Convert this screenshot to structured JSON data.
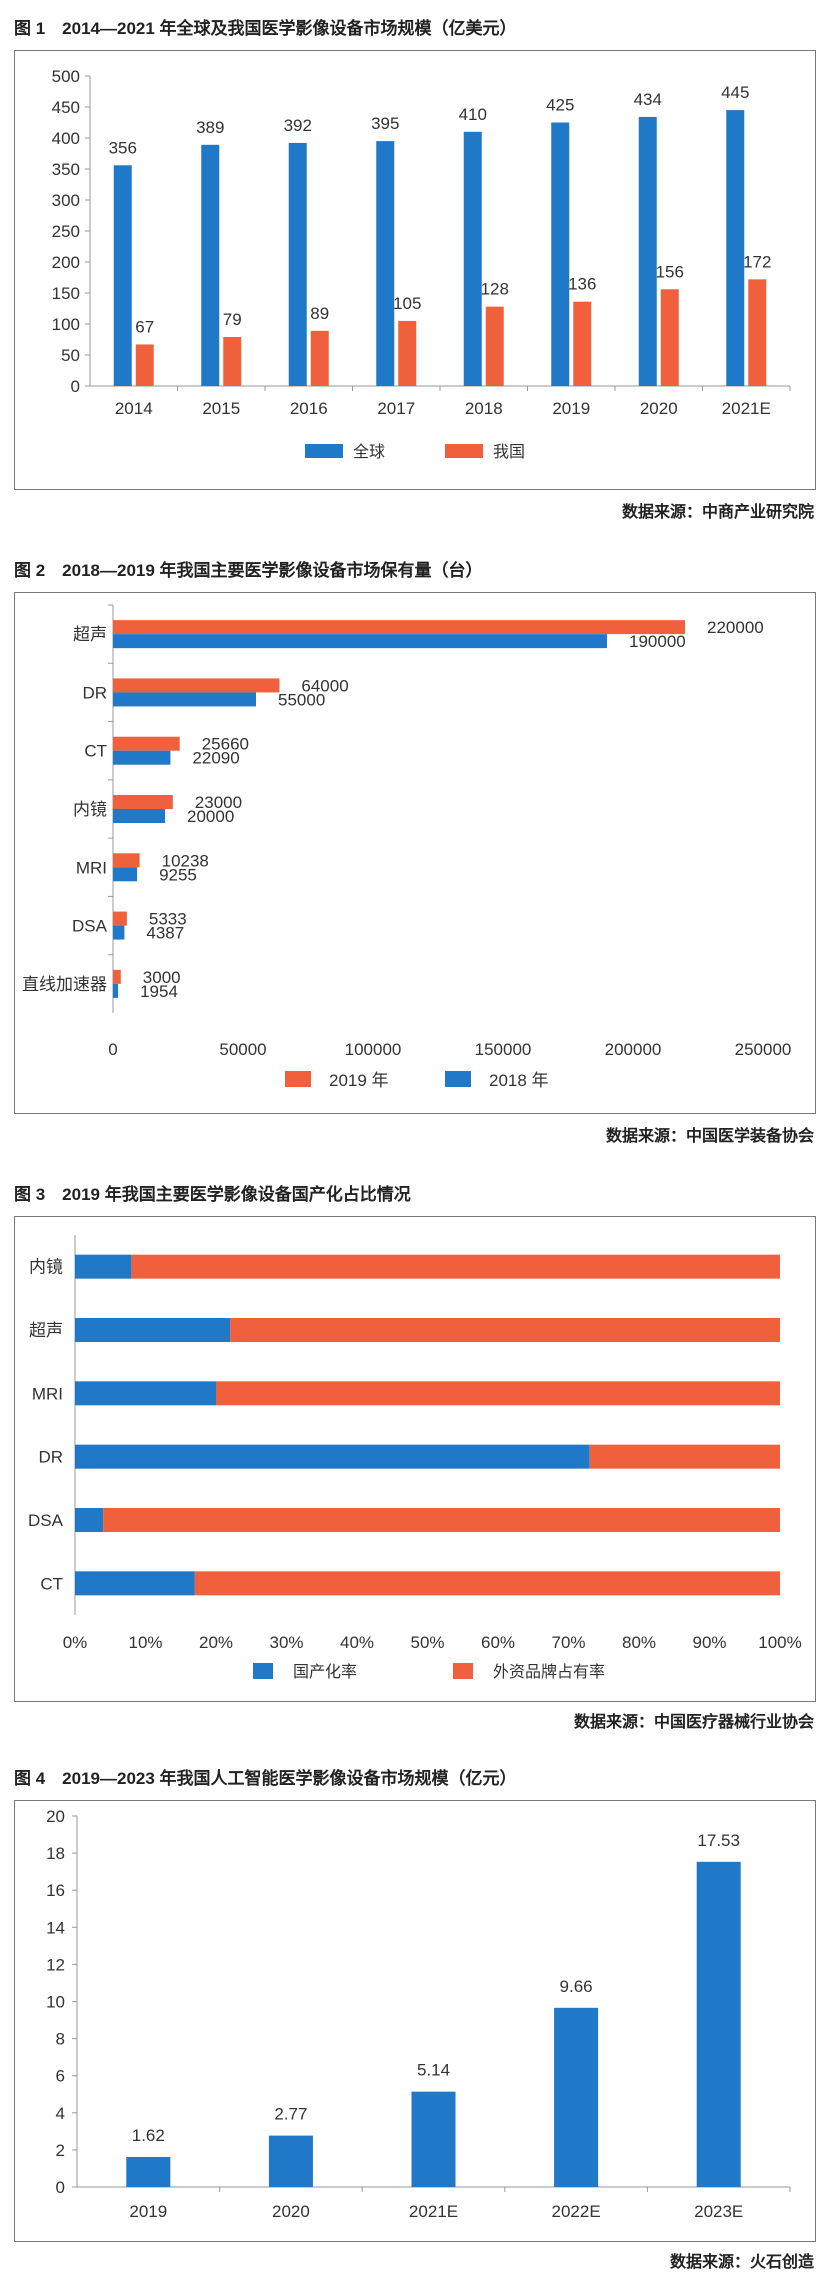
{
  "colors": {
    "blue": "#1f78c8",
    "orange": "#f0603c",
    "axis": "#9a9a9a"
  },
  "figures": [
    {
      "caption": "图 1　2014—2021 年全球及我国医学影像设备市场规模（亿美元）",
      "source": "数据来源：中商产业研究院"
    },
    {
      "caption": "图 2　2018—2019 年我国主要医学影像设备市场保有量（台）",
      "source": "数据来源：中国医学装备协会"
    },
    {
      "caption": "图 3　2019 年我国主要医学影像设备国产化占比情况",
      "source": "数据来源：中国医疗器械行业协会"
    },
    {
      "caption": "图 4　2019—2023 年我国人工智能医学影像设备市场规模（亿元）",
      "source": "数据来源：火石创造"
    }
  ],
  "chart_data": [
    {
      "type": "bar",
      "categories": [
        "2014",
        "2015",
        "2016",
        "2017",
        "2018",
        "2019",
        "2020",
        "2021E"
      ],
      "series": [
        {
          "name": "全球",
          "values": [
            356,
            389,
            392,
            395,
            410,
            425,
            434,
            445
          ],
          "color": "#1f78c8"
        },
        {
          "name": "我国",
          "values": [
            67,
            79,
            89,
            105,
            128,
            136,
            156,
            172
          ],
          "color": "#f0603c"
        }
      ],
      "ylim": [
        0,
        500
      ],
      "yticks": [
        0,
        50,
        100,
        150,
        200,
        250,
        300,
        350,
        400,
        450,
        500
      ],
      "legend": "bottom-center",
      "grid": false
    },
    {
      "type": "bar",
      "orientation": "horizontal",
      "categories": [
        "超声",
        "DR",
        "CT",
        "内镜",
        "MRI",
        "DSA",
        "直线加速器"
      ],
      "series": [
        {
          "name": "2019 年",
          "values": [
            220000,
            64000,
            25660,
            23000,
            10238,
            5333,
            3000
          ],
          "color": "#f0603c"
        },
        {
          "name": "2018 年",
          "values": [
            190000,
            55000,
            22090,
            20000,
            9255,
            4387,
            1954
          ],
          "color": "#1f78c8"
        }
      ],
      "xlim": [
        0,
        250000
      ],
      "xticks": [
        0,
        50000,
        100000,
        150000,
        200000,
        250000
      ],
      "legend": "bottom-center",
      "grid": false
    },
    {
      "type": "bar",
      "orientation": "horizontal",
      "stacked": "percent",
      "categories": [
        "内镜",
        "超声",
        "MRI",
        "DR",
        "DSA",
        "CT"
      ],
      "series": [
        {
          "name": "国产化率",
          "values": [
            8,
            22,
            20,
            73,
            4,
            17
          ],
          "color": "#1f78c8"
        },
        {
          "name": "外资品牌占有率",
          "values": [
            92,
            78,
            80,
            27,
            96,
            83
          ],
          "color": "#f0603c"
        }
      ],
      "xlim": [
        0,
        100
      ],
      "xticks": [
        "0%",
        "10%",
        "20%",
        "30%",
        "40%",
        "50%",
        "60%",
        "70%",
        "80%",
        "90%",
        "100%"
      ],
      "legend": "bottom-center",
      "grid": false
    },
    {
      "type": "bar",
      "categories": [
        "2019",
        "2020",
        "2021E",
        "2022E",
        "2023E"
      ],
      "series": [
        {
          "values": [
            1.62,
            2.77,
            5.14,
            9.66,
            17.53
          ],
          "labels": [
            "1.62",
            "2.77",
            "5.14",
            "9.66",
            "17.53"
          ],
          "color": "#1f78c8"
        }
      ],
      "ylim": [
        0,
        20
      ],
      "yticks": [
        0,
        2,
        4,
        6,
        8,
        10,
        12,
        14,
        16,
        18,
        20
      ],
      "grid": false
    }
  ]
}
